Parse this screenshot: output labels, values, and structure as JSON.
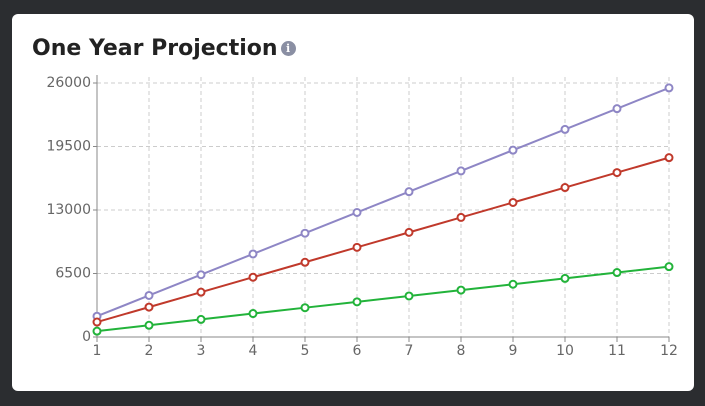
{
  "chart_data": {
    "type": "line",
    "title": "One Year Projection",
    "x": [
      1,
      2,
      3,
      4,
      5,
      6,
      7,
      8,
      9,
      10,
      11,
      12
    ],
    "xlim": [
      1,
      12
    ],
    "xticks": [
      1,
      2,
      3,
      4,
      5,
      6,
      7,
      8,
      9,
      10,
      11,
      12
    ],
    "ylim": [
      0,
      26000
    ],
    "yticks": [
      0,
      6500,
      13000,
      19500,
      26000
    ],
    "grid": true,
    "series": [
      {
        "color": "#8e86c5",
        "values": [
          2125,
          4250,
          6375,
          8500,
          10625,
          12750,
          14875,
          17000,
          19125,
          21250,
          23375,
          25500
        ]
      },
      {
        "color": "#c0392b",
        "values": [
          1530,
          3060,
          4590,
          6120,
          7650,
          9180,
          10710,
          12240,
          13770,
          15300,
          16830,
          18360
        ]
      },
      {
        "color": "#22b33a",
        "values": [
          600,
          1200,
          1800,
          2400,
          3000,
          3600,
          4200,
          4800,
          5400,
          6000,
          6600,
          7200
        ]
      }
    ]
  }
}
